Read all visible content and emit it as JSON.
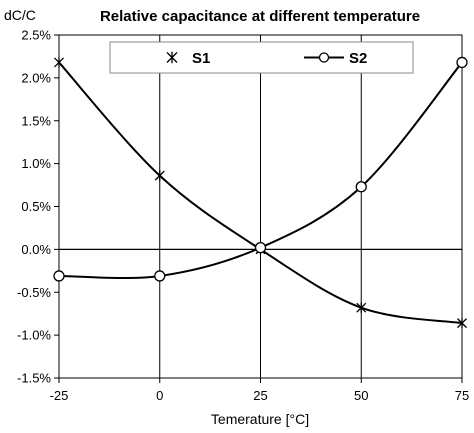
{
  "chart_data": {
    "type": "line",
    "title": "Relative capacitance at different temperature",
    "ylabel": "dC/C",
    "xlabel": "Temerature [°C]",
    "x": [
      -25,
      0,
      25,
      50,
      75
    ],
    "x_ticks": [
      "-25",
      "0",
      "25",
      "50",
      "75"
    ],
    "xlim": [
      -25,
      75
    ],
    "ylim": [
      -1.5,
      2.5
    ],
    "y_ticks": [
      "2.5%",
      "2.0%",
      "1.5%",
      "1.0%",
      "0.5%",
      "0.0%",
      "-0.5%",
      "-1.0%",
      "-1.5%"
    ],
    "y_tick_values": [
      2.5,
      2.0,
      1.5,
      1.0,
      0.5,
      0.0,
      -0.5,
      -1.0,
      -1.5
    ],
    "grid": "vertical",
    "zero_line": true,
    "legend": "top",
    "series": [
      {
        "name": "S1",
        "marker": "asterisk",
        "values": [
          2.18,
          0.86,
          0.0,
          -0.68,
          -0.86
        ]
      },
      {
        "name": "S2",
        "marker": "circle",
        "values": [
          -0.31,
          -0.31,
          0.02,
          0.73,
          2.18
        ]
      }
    ],
    "colors": {
      "line": "#000000",
      "grid": "#000000",
      "background": "#ffffff"
    }
  }
}
